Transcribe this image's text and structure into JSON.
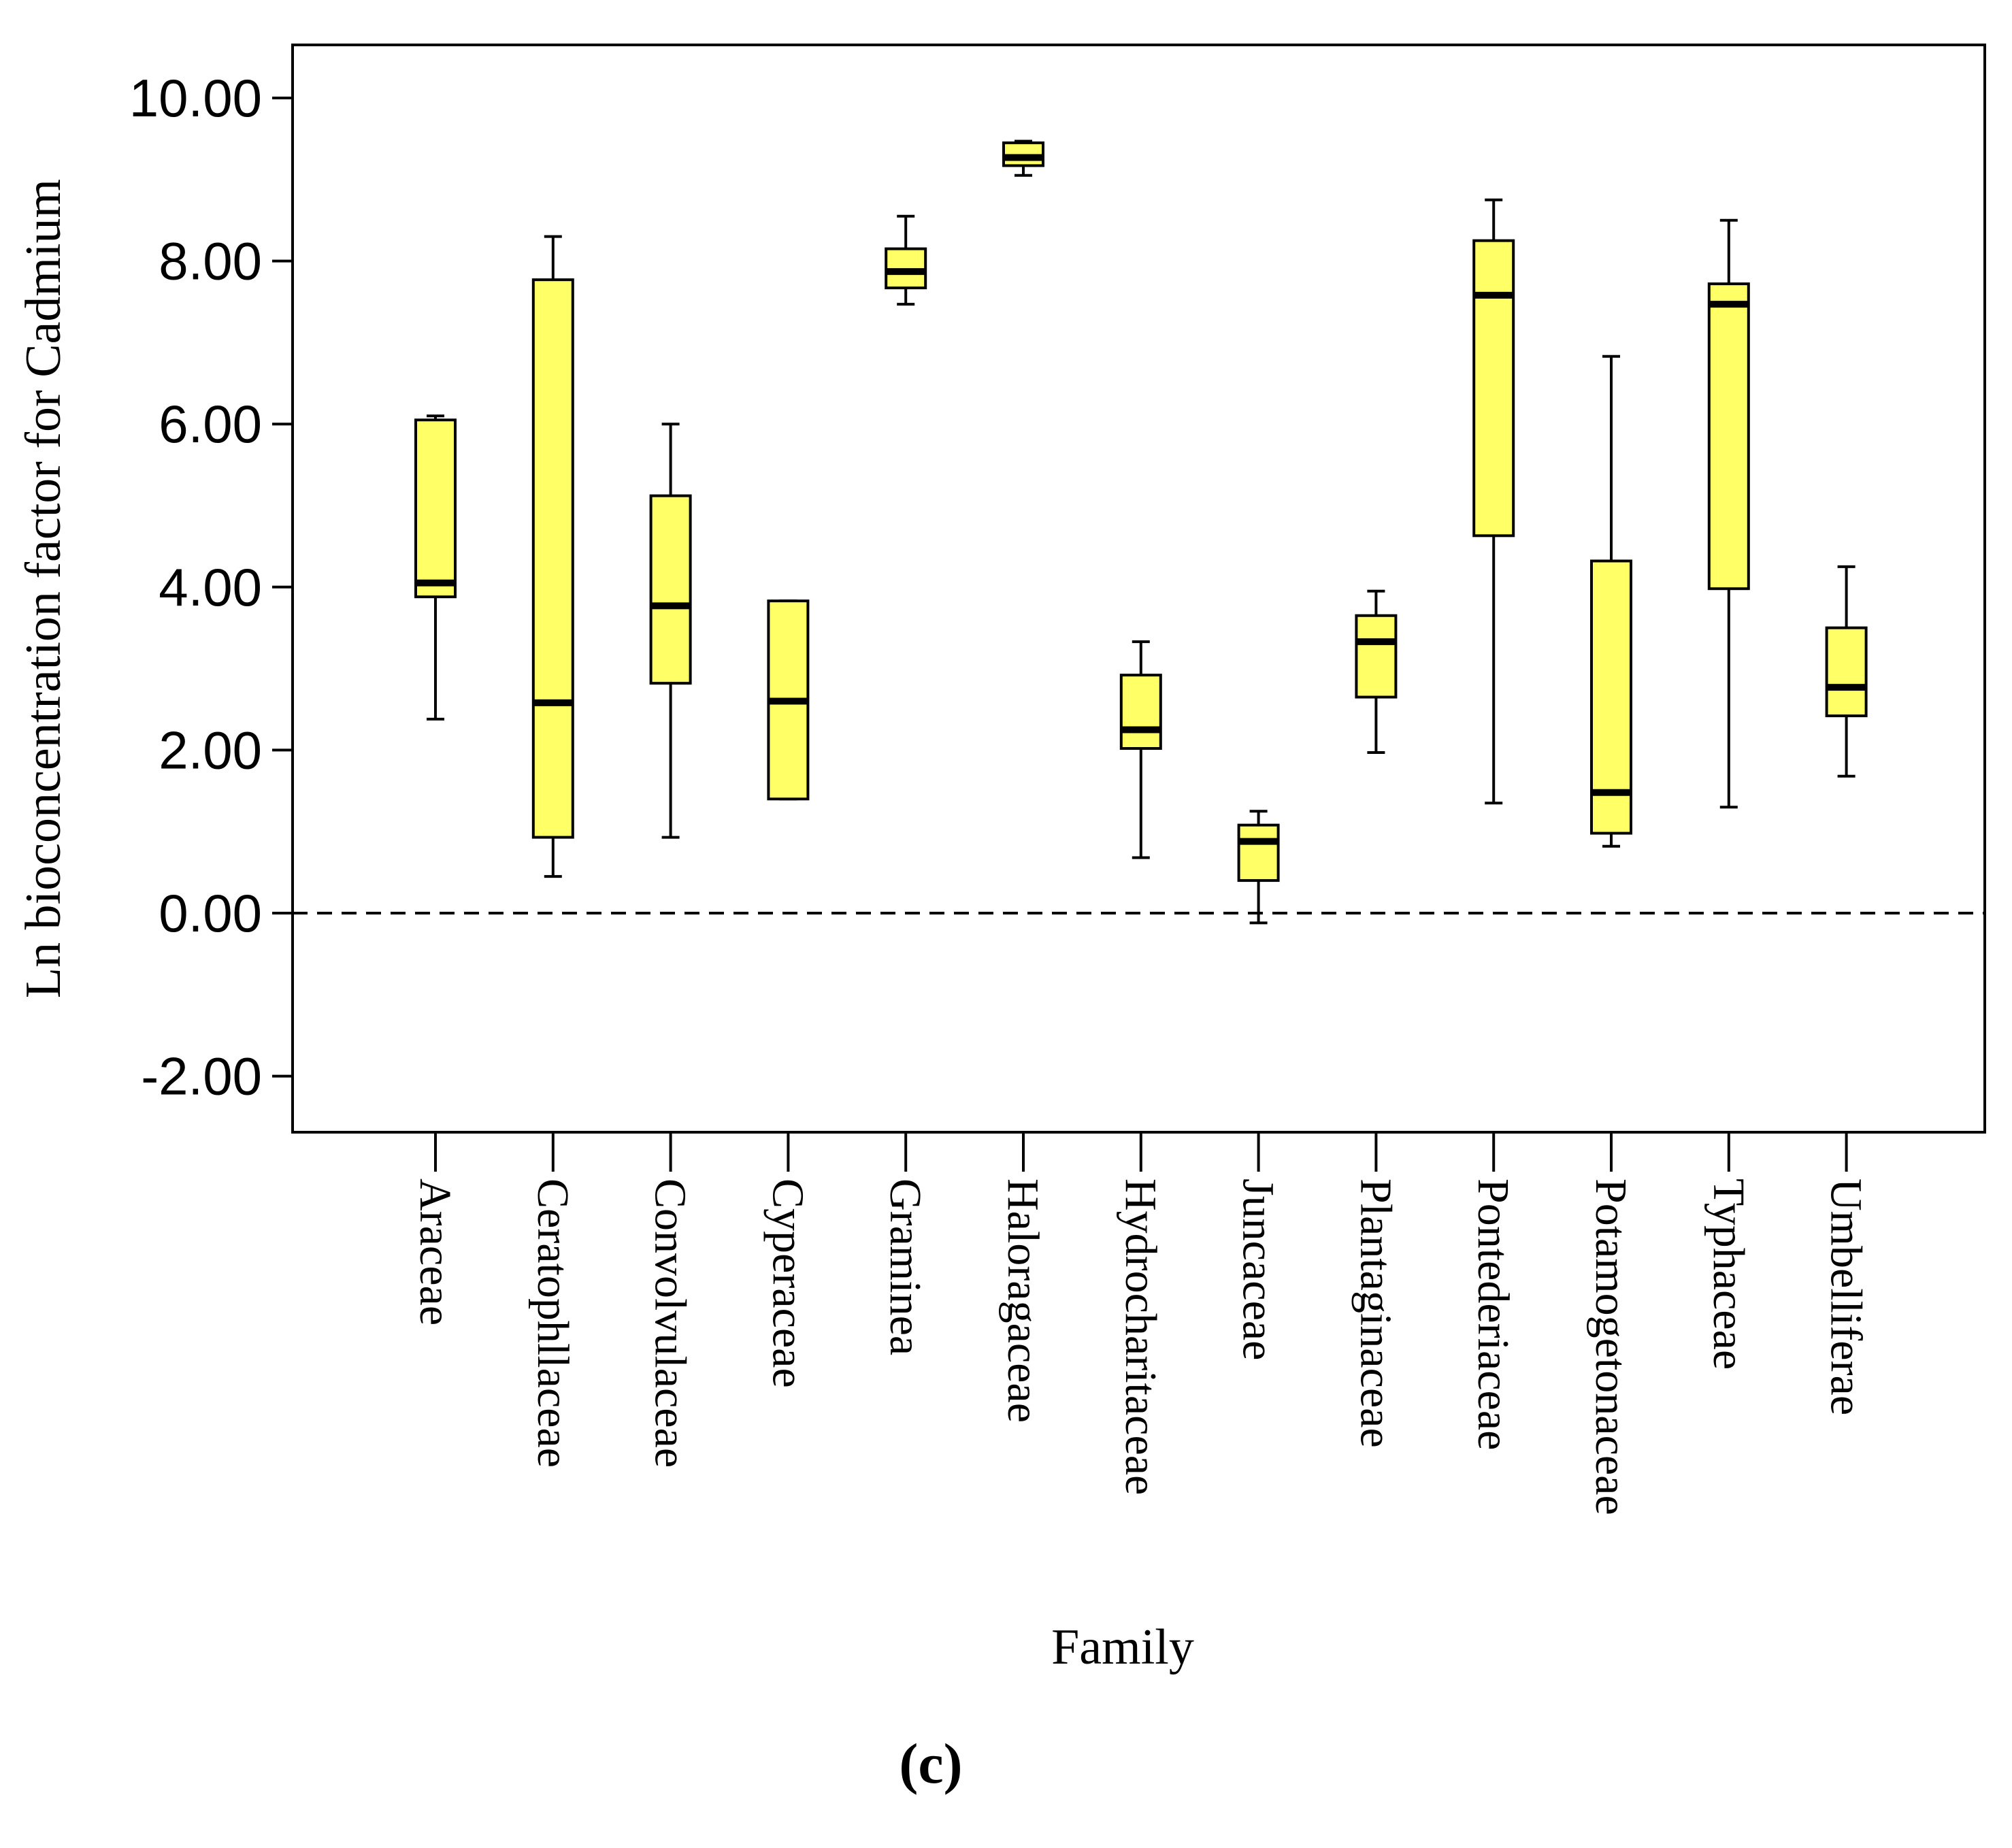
{
  "chart_data": {
    "type": "boxplot",
    "title": "",
    "xlabel": "Family",
    "ylabel": "Ln bioconcentration factor for Cadmium",
    "panel_label": "(c)",
    "ylim": [
      -2.7,
      10.7
    ],
    "yticks": [
      -2,
      0,
      2,
      4,
      6,
      8,
      10
    ],
    "ytick_labels": [
      "-2.00",
      "0.00",
      "2.00",
      "4.00",
      "6.00",
      "8.00",
      "10.00"
    ],
    "reference_line": {
      "y": 0,
      "style": "dashed"
    },
    "grid": false,
    "box_color": "#ffff66",
    "line_color": "#000000",
    "categories": [
      "Araceae",
      "Ceratophllaceae",
      "Convolvulaceae",
      "Cyperaceae",
      "Graminea",
      "Haloragaceae",
      "Hydrocharitaceae",
      "Juncaceae",
      "Plantaginaceae",
      "Pontederiaceae",
      "Potamogetonaceae",
      "Typhaceae",
      "Umbelliferae"
    ],
    "boxes": [
      {
        "min": 2.38,
        "q1": 3.88,
        "median": 4.05,
        "q3": 6.05,
        "max": 6.1
      },
      {
        "min": 0.45,
        "q1": 0.93,
        "median": 2.58,
        "q3": 7.77,
        "max": 8.3
      },
      {
        "min": 0.93,
        "q1": 2.82,
        "median": 3.77,
        "q3": 5.12,
        "max": 6.0
      },
      {
        "min": 1.4,
        "q1": 1.4,
        "median": 2.6,
        "q3": 3.83,
        "max": 3.83
      },
      {
        "min": 7.47,
        "q1": 7.67,
        "median": 7.87,
        "q3": 8.15,
        "max": 8.55
      },
      {
        "min": 9.05,
        "q1": 9.17,
        "median": 9.27,
        "q3": 9.45,
        "max": 9.47
      },
      {
        "min": 0.68,
        "q1": 2.02,
        "median": 2.25,
        "q3": 2.92,
        "max": 3.33
      },
      {
        "min": -0.12,
        "q1": 0.4,
        "median": 0.88,
        "q3": 1.08,
        "max": 1.25
      },
      {
        "min": 1.97,
        "q1": 2.65,
        "median": 3.33,
        "q3": 3.65,
        "max": 3.95
      },
      {
        "min": 1.35,
        "q1": 4.63,
        "median": 7.58,
        "q3": 8.25,
        "max": 8.75
      },
      {
        "min": 0.82,
        "q1": 0.98,
        "median": 1.48,
        "q3": 4.32,
        "max": 6.83
      },
      {
        "min": 1.3,
        "q1": 3.98,
        "median": 7.47,
        "q3": 7.72,
        "max": 8.5
      },
      {
        "min": 1.68,
        "q1": 2.42,
        "median": 2.77,
        "q3": 3.5,
        "max": 4.25
      }
    ]
  }
}
